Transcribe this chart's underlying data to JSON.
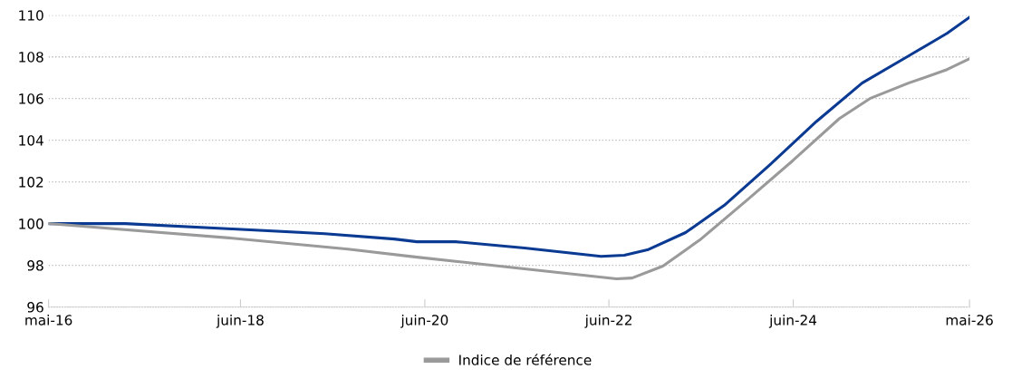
{
  "chart_data": {
    "type": "line",
    "series": [
      {
        "name": null,
        "color": "#0a3a92",
        "x": [
          "2016-05",
          "2017-03",
          "2018-05",
          "2019-05",
          "2020-02",
          "2020-05",
          "2020-10",
          "2021-07",
          "2022-05",
          "2022-08",
          "2022-11",
          "2023-04",
          "2023-09",
          "2024-03",
          "2024-09",
          "2025-03",
          "2025-09",
          "2026-02",
          "2026-05"
        ],
        "values": [
          100,
          100,
          99.74,
          99.52,
          99.26,
          99.13,
          99.13,
          98.83,
          98.43,
          98.48,
          98.74,
          99.57,
          100.87,
          102.83,
          104.9,
          106.74,
          108.04,
          109.13,
          109.9
        ]
      },
      {
        "name": "Indice de référence",
        "color": "#9a9a9a",
        "x": [
          "2016-05",
          "2018-05",
          "2019-08",
          "2020-05",
          "2021-07",
          "2022-07",
          "2022-09",
          "2023-01",
          "2023-06",
          "2023-12",
          "2024-06",
          "2024-12",
          "2025-04",
          "2025-09",
          "2026-02",
          "2026-05"
        ],
        "values": [
          100,
          99.3,
          98.78,
          98.39,
          97.83,
          97.35,
          97.39,
          97.96,
          99.26,
          101.13,
          103.04,
          105.04,
          106.0,
          106.74,
          107.39,
          107.91
        ]
      }
    ],
    "xlim": [
      "2016-05",
      "2026-05"
    ],
    "xticks": [
      {
        "value": "2016-05",
        "label": "mai-16"
      },
      {
        "value": "2018-06",
        "label": "juin-18"
      },
      {
        "value": "2020-06",
        "label": "juin-20"
      },
      {
        "value": "2022-06",
        "label": "juin-22"
      },
      {
        "value": "2024-06",
        "label": "juin-24"
      },
      {
        "value": "2026-05",
        "label": "mai-26"
      }
    ],
    "ylim": [
      96,
      110
    ],
    "yticks": [
      96,
      98,
      100,
      102,
      104,
      106,
      108,
      110
    ],
    "grid": "y",
    "legend": "bottom",
    "marker": "none",
    "line_style": "solid"
  }
}
